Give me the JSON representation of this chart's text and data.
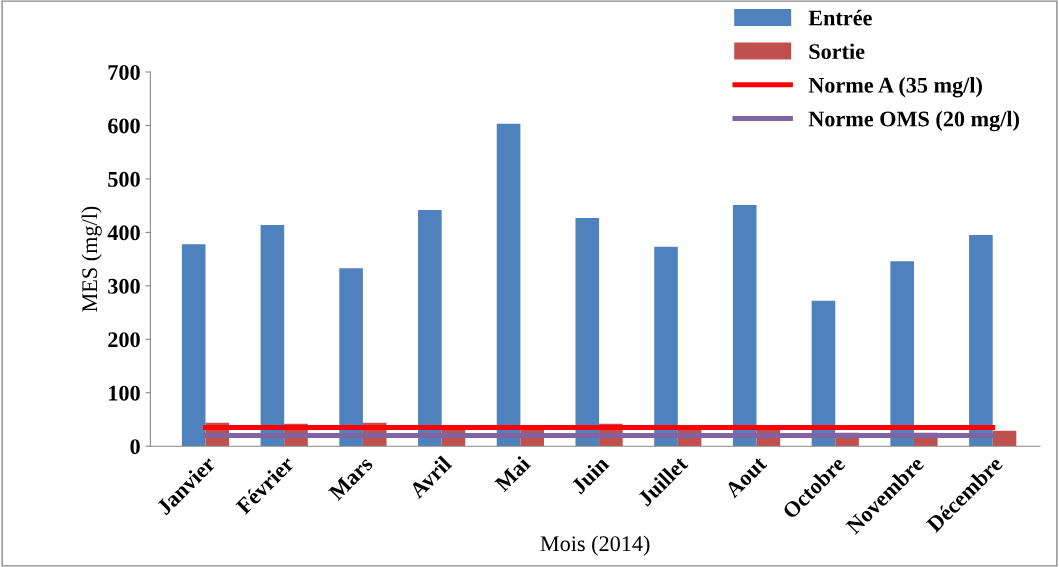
{
  "chart_data": {
    "type": "bar",
    "xlabel": "Mois (2014)",
    "ylabel": "MES (mg/l)",
    "categories": [
      "Janvier",
      "Février",
      "Mars",
      "Avril",
      "Mai",
      "Juin",
      "Juillet",
      "Aout",
      "Octobre",
      "Novembre",
      "Décembre"
    ],
    "series": [
      {
        "name": "Entrée",
        "color": "#4f81bd",
        "values": [
          378,
          414,
          333,
          442,
          603,
          427,
          373,
          451,
          272,
          346,
          395
        ]
      },
      {
        "name": "Sortie",
        "color": "#c0504d",
        "values": [
          44,
          42,
          44,
          33,
          33,
          42,
          35,
          33,
          25,
          25,
          29
        ]
      },
      {
        "name": "Norme A (35 mg/l)",
        "type": "line",
        "color": "#ff0000",
        "values": [
          35,
          35,
          35,
          35,
          35,
          35,
          35,
          35,
          35,
          35,
          35
        ]
      },
      {
        "name": "Norme OMS (20 mg/l)",
        "type": "line",
        "color": "#8064a2",
        "values": [
          20,
          20,
          20,
          20,
          20,
          20,
          20,
          20,
          20,
          20,
          20
        ]
      }
    ],
    "ylim": [
      0,
      700
    ],
    "yticks": [
      0,
      100,
      200,
      300,
      400,
      500,
      600,
      700
    ],
    "grid": false,
    "legend": "top right"
  }
}
